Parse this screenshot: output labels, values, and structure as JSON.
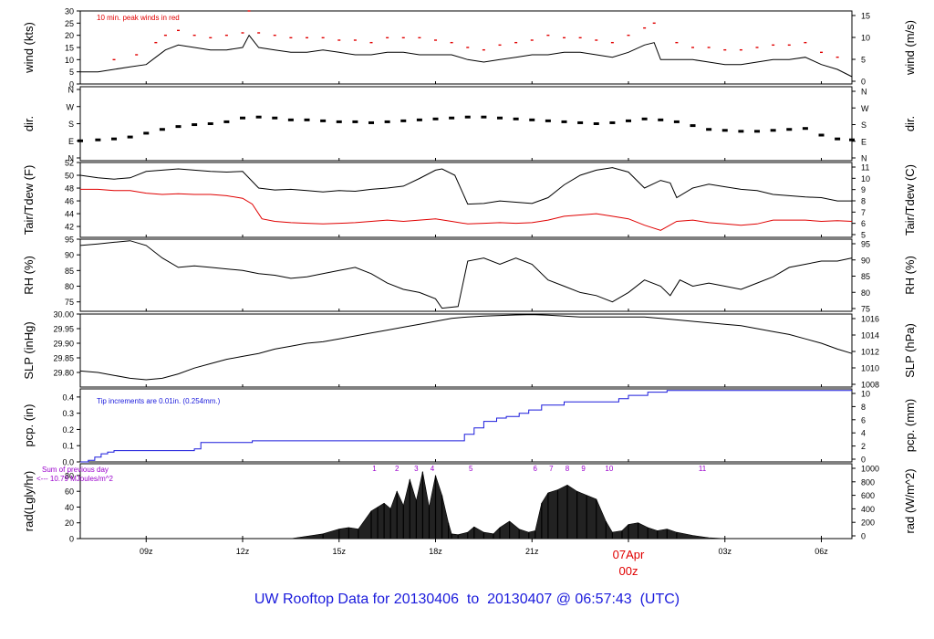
{
  "title": "UW Rooftop Data for 20130406  to  20130407 @ 06:57:43  (UTC)",
  "colors": {
    "line": "#000000",
    "peak": "#e00000",
    "dew": "#e00000",
    "pcp": "#1a1adc",
    "annot": "#9a00cc",
    "title": "#1a1adc",
    "day": "#e00000"
  },
  "x_axis": {
    "range_hours": [
      6.95,
      30.95
    ],
    "tick_labels": [
      "09z",
      "12z",
      "15z",
      "18z",
      "21z",
      "03z",
      "06z"
    ],
    "tick_hours": [
      9,
      12,
      15,
      18,
      21,
      27,
      30
    ],
    "day_label_line1": "07Apr",
    "day_label_line2": "00z",
    "day_label_hour": 24
  },
  "chart_data": [
    {
      "type": "line",
      "id": "wind",
      "ylabel_left": "wind (kts)",
      "ylabel_right": "wind (m/s)",
      "ylim": [
        0,
        30
      ],
      "left_ticks": [
        "0",
        "5",
        "10",
        "15",
        "20",
        "25",
        "30"
      ],
      "right_ticks": [
        "0",
        "5",
        "10",
        "15"
      ],
      "annotation": "10 min. peak winds in red",
      "series": [
        {
          "name": "",
          "x": [
            6.95,
            7.5,
            8,
            8.5,
            9,
            9.3,
            9.6,
            10,
            10.5,
            11,
            11.5,
            12,
            12.2,
            12.5,
            13,
            13.5,
            14,
            14.5,
            15,
            15.5,
            16,
            16.5,
            17,
            17.5,
            18,
            18.5,
            19,
            19.5,
            20,
            20.5,
            21,
            21.5,
            22,
            22.5,
            23,
            23.5,
            24,
            24.5,
            24.8,
            25,
            25.5,
            26,
            26.5,
            27,
            27.5,
            28,
            28.5,
            29,
            29.5,
            30,
            30.5,
            30.95
          ],
          "y": [
            5,
            5,
            6,
            7,
            8,
            11,
            14,
            16,
            15,
            14,
            14,
            15,
            20,
            15,
            14,
            13,
            13,
            14,
            13,
            12,
            12,
            13,
            13,
            12,
            12,
            12,
            10,
            9,
            10,
            11,
            12,
            12,
            13,
            13,
            12,
            11,
            13,
            16,
            17,
            10,
            10,
            10,
            9,
            8,
            8,
            9,
            10,
            10,
            11,
            8,
            6,
            3
          ]
        },
        {
          "name": "",
          "x": [
            8,
            8.7,
            9.3,
            9.6,
            10,
            10.5,
            11,
            11.5,
            12,
            12.2,
            12.5,
            13,
            13.5,
            14,
            14.5,
            15,
            15.5,
            16,
            16.5,
            17,
            17.5,
            18,
            18.5,
            19,
            19.5,
            20,
            20.5,
            21,
            21.5,
            22,
            22.5,
            23,
            23.5,
            24,
            24.5,
            24.8,
            25.5,
            26,
            26.5,
            27,
            27.5,
            28,
            28.5,
            29,
            29.5,
            30,
            30.5
          ],
          "y": [
            10,
            12,
            17,
            20,
            22,
            20,
            19,
            20,
            21,
            30,
            21,
            20,
            19,
            19,
            19,
            18,
            18,
            17,
            19,
            19,
            19,
            18,
            17,
            15,
            14,
            16,
            17,
            18,
            20,
            19,
            19,
            18,
            17,
            20,
            23,
            25,
            17,
            15,
            15,
            14,
            14,
            15,
            16,
            16,
            17,
            13,
            11
          ]
        }
      ]
    },
    {
      "type": "scatter",
      "id": "dir",
      "ylabel_left": "dir.",
      "ylabel_right": "dir.",
      "ylim": [
        0,
        360
      ],
      "left_ticks": [
        "N",
        "E",
        "S",
        "W",
        "N"
      ],
      "right_ticks": [
        "N",
        "E",
        "S",
        "W",
        "N"
      ],
      "series": [
        {
          "name": "",
          "x": [
            6.95,
            7.5,
            8,
            8.5,
            9,
            9.5,
            10,
            10.5,
            11,
            11.5,
            12,
            12.5,
            13,
            13.5,
            14,
            14.5,
            15,
            15.5,
            16,
            16.5,
            17,
            17.5,
            18,
            18.5,
            19,
            19.5,
            20,
            20.5,
            21,
            21.5,
            22,
            22.5,
            23,
            23.5,
            24,
            24.5,
            25,
            25.5,
            26,
            26.5,
            27,
            27.5,
            28,
            28.5,
            29,
            29.5,
            30,
            30.5,
            30.95
          ],
          "y": [
            90,
            95,
            100,
            110,
            130,
            150,
            165,
            175,
            180,
            190,
            210,
            215,
            210,
            200,
            200,
            195,
            190,
            190,
            185,
            190,
            195,
            200,
            205,
            210,
            215,
            215,
            210,
            205,
            200,
            195,
            190,
            185,
            180,
            185,
            195,
            205,
            200,
            190,
            170,
            150,
            145,
            140,
            140,
            145,
            150,
            155,
            120,
            100,
            95
          ]
        }
      ]
    },
    {
      "type": "line",
      "id": "temp",
      "ylabel_left": "Tair/Tdew (F)",
      "ylabel_right": "Tair/Tdew (C)",
      "ylim": [
        40.3,
        52
      ],
      "left_ticks": [
        "42",
        "44",
        "46",
        "48",
        "50",
        "52"
      ],
      "right_ticks": [
        "5",
        "6",
        "7",
        "8",
        "9",
        "10",
        "11"
      ],
      "series": [
        {
          "name": "",
          "x": [
            6.95,
            7.5,
            8,
            8.5,
            9,
            9.5,
            10,
            10.5,
            11,
            11.5,
            12,
            12.5,
            13,
            13.5,
            14,
            14.5,
            15,
            15.5,
            16,
            16.5,
            17,
            17.5,
            18,
            18.2,
            18.6,
            19,
            19.5,
            20,
            20.5,
            21,
            21.5,
            22,
            22.5,
            23,
            23.5,
            24,
            24.5,
            25,
            25.3,
            25.5,
            26,
            26.5,
            27,
            27.5,
            28,
            28.5,
            29,
            29.5,
            30,
            30.5,
            30.95
          ],
          "y": [
            50,
            49.6,
            49.4,
            49.6,
            50.6,
            50.8,
            51,
            50.8,
            50.6,
            50.5,
            50.6,
            48,
            47.7,
            47.8,
            47.6,
            47.4,
            47.6,
            47.5,
            47.8,
            48,
            48.3,
            49.5,
            50.8,
            51,
            50,
            45.5,
            45.6,
            46,
            45.8,
            45.6,
            46.5,
            48.5,
            50,
            50.8,
            51.2,
            50.5,
            48,
            49.2,
            48.8,
            46.5,
            48,
            48.6,
            48.2,
            47.8,
            47.6,
            47,
            46.8,
            46.6,
            46.5,
            46,
            46
          ]
        },
        {
          "name": "",
          "x": [
            6.95,
            7.5,
            8,
            8.5,
            9,
            9.5,
            10,
            10.5,
            11,
            11.5,
            12,
            12.3,
            12.6,
            13,
            13.5,
            14,
            14.5,
            15,
            15.5,
            16,
            16.5,
            17,
            17.5,
            18,
            18.5,
            19,
            19.5,
            20,
            20.5,
            21,
            21.5,
            22,
            22.5,
            23,
            23.5,
            24,
            24.5,
            25,
            25.5,
            26,
            26.5,
            27,
            27.5,
            28,
            28.5,
            29,
            29.5,
            30,
            30.5,
            30.95
          ],
          "y": [
            47.8,
            47.8,
            47.6,
            47.6,
            47.2,
            47,
            47.1,
            47,
            47,
            46.8,
            46.4,
            45.5,
            43.2,
            42.8,
            42.6,
            42.5,
            42.4,
            42.5,
            42.6,
            42.8,
            43,
            42.8,
            43,
            43.2,
            42.8,
            42.4,
            42.5,
            42.6,
            42.5,
            42.6,
            43,
            43.6,
            43.8,
            44,
            43.6,
            43.2,
            42.2,
            41.4,
            42.8,
            43,
            42.6,
            42.4,
            42.2,
            42.4,
            43,
            43,
            43,
            42.8,
            42.9,
            42.8
          ]
        }
      ]
    },
    {
      "type": "line",
      "id": "rh",
      "ylabel_left": "RH (%)",
      "ylabel_right": "RH (%)",
      "ylim": [
        72,
        95
      ],
      "left_ticks": [
        "75",
        "80",
        "85",
        "90",
        "95"
      ],
      "right_ticks": [
        "75",
        "80",
        "85",
        "90",
        "95"
      ],
      "series": [
        {
          "name": "",
          "x": [
            6.95,
            7.5,
            8,
            8.5,
            9,
            9.5,
            10,
            10.5,
            11,
            11.5,
            12,
            12.5,
            13,
            13.5,
            14,
            14.5,
            15,
            15.5,
            16,
            16.5,
            17,
            17.5,
            18,
            18.2,
            18.7,
            19,
            19.5,
            20,
            20.5,
            21,
            21.5,
            22,
            22.5,
            23,
            23.5,
            24,
            24.5,
            25,
            25.3,
            25.6,
            26,
            26.5,
            27,
            27.5,
            28,
            28.5,
            29,
            29.5,
            30,
            30.5,
            30.95
          ],
          "y": [
            93,
            93.5,
            94,
            94.5,
            93,
            89,
            86,
            86.5,
            86,
            85.5,
            85,
            84,
            83.5,
            82.5,
            83,
            84,
            85,
            86,
            84,
            81,
            79,
            78,
            76,
            73,
            73.5,
            88,
            89,
            87,
            89,
            87,
            82,
            80,
            78,
            77,
            75,
            78,
            82,
            80,
            77,
            82,
            80,
            81,
            80,
            79,
            81,
            83,
            86,
            87,
            88,
            88,
            89
          ]
        }
      ]
    },
    {
      "type": "line",
      "id": "slp",
      "ylabel_left": "SLP (inHg)",
      "ylabel_right": "SLP (hPa)",
      "ylim": [
        29.75,
        30
      ],
      "left_ticks": [
        "29.80",
        "29.85",
        "29.90",
        "29.95",
        "30.00"
      ],
      "right_ticks": [
        "1008",
        "1010",
        "1012",
        "1014",
        "1016"
      ],
      "series": [
        {
          "name": "",
          "x": [
            6.95,
            7.5,
            8,
            8.5,
            9,
            9.5,
            10,
            10.5,
            11,
            11.5,
            12,
            12.5,
            13,
            13.5,
            14,
            14.5,
            15,
            15.5,
            16,
            16.5,
            17,
            17.5,
            18,
            18.5,
            19,
            19.5,
            20,
            20.5,
            21,
            21.5,
            22,
            22.5,
            23,
            23.5,
            24,
            24.5,
            25,
            25.5,
            26,
            26.5,
            27,
            27.5,
            28,
            28.5,
            29,
            29.5,
            30,
            30.5,
            30.95
          ],
          "y": [
            29.805,
            29.8,
            29.79,
            29.78,
            29.775,
            29.78,
            29.795,
            29.815,
            29.83,
            29.845,
            29.855,
            29.865,
            29.88,
            29.89,
            29.9,
            29.905,
            29.915,
            29.925,
            29.935,
            29.945,
            29.955,
            29.965,
            29.975,
            29.985,
            29.99,
            29.993,
            29.995,
            29.997,
            29.998,
            29.996,
            29.993,
            29.99,
            29.99,
            29.99,
            29.99,
            29.99,
            29.985,
            29.98,
            29.975,
            29.97,
            29.965,
            29.96,
            29.95,
            29.94,
            29.93,
            29.915,
            29.9,
            29.88,
            29.865
          ]
        }
      ]
    },
    {
      "type": "line",
      "id": "pcp",
      "ylabel_left": "pcp. (in)",
      "ylabel_right": "pcp. (mm)",
      "ylim": [
        0,
        0.45
      ],
      "left_ticks": [
        "0.0",
        "0.1",
        "0.2",
        "0.3",
        "0.4"
      ],
      "right_ticks": [
        "0",
        "2",
        "4",
        "6",
        "8",
        "10"
      ],
      "annotation": "Tip increments are 0.01in. (0.254mm.)",
      "series": [
        {
          "name": "",
          "x": [
            6.95,
            7.2,
            7.4,
            7.6,
            7.8,
            8,
            10.5,
            10.7,
            12,
            12.3,
            18.6,
            18.9,
            19.2,
            19.5,
            19.9,
            20.2,
            20.6,
            20.9,
            21.3,
            22,
            22.7,
            23.3,
            23.7,
            24,
            24.4,
            24.6,
            25.2,
            30.95
          ],
          "y": [
            0,
            0.01,
            0.03,
            0.05,
            0.06,
            0.07,
            0.08,
            0.12,
            0.12,
            0.13,
            0.13,
            0.17,
            0.21,
            0.25,
            0.27,
            0.28,
            0.3,
            0.32,
            0.35,
            0.37,
            0.37,
            0.37,
            0.39,
            0.41,
            0.41,
            0.43,
            0.44,
            0.44
          ]
        }
      ]
    },
    {
      "type": "area",
      "id": "rad",
      "ylabel_left": "rad(Lgly/hr)",
      "ylabel_right": "rad (W/m^2)",
      "ylim": [
        0,
        95
      ],
      "left_ticks": [
        "0",
        "20",
        "40",
        "60",
        "80"
      ],
      "right_ticks": [
        "0",
        "200",
        "400",
        "600",
        "800",
        "1000"
      ],
      "annotation_line1": "Sum of previous day",
      "annotation_line2": "<--- 10.79 MJoules/m^2",
      "hour_labels": [
        "1",
        "2",
        "3",
        "4",
        "5",
        "6",
        "7",
        "8",
        "9",
        "10",
        "11"
      ],
      "hour_label_x": [
        16.1,
        16.8,
        17.4,
        17.9,
        19.1,
        21.1,
        21.6,
        22.1,
        22.6,
        23.4,
        26.3
      ],
      "series": [
        {
          "name": "",
          "x": [
            13.5,
            14,
            14.5,
            15,
            15.3,
            15.6,
            16,
            16.2,
            16.4,
            16.6,
            16.8,
            17,
            17.2,
            17.4,
            17.6,
            17.8,
            18,
            18.2,
            18.4,
            18.5,
            18.7,
            19,
            19.2,
            19.5,
            19.8,
            20,
            20.3,
            20.6,
            20.9,
            21.1,
            21.3,
            21.5,
            21.8,
            22.1,
            22.4,
            22.7,
            23,
            23.3,
            23.5,
            23.8,
            24,
            24.3,
            24.6,
            24.9,
            25.2,
            25.5,
            26,
            26.5,
            27
          ],
          "y": [
            0,
            3,
            6,
            12,
            14,
            12,
            35,
            40,
            45,
            38,
            60,
            42,
            75,
            48,
            85,
            40,
            80,
            55,
            20,
            6,
            5,
            8,
            15,
            8,
            6,
            14,
            22,
            12,
            8,
            10,
            45,
            58,
            62,
            68,
            60,
            55,
            50,
            22,
            8,
            10,
            18,
            20,
            14,
            10,
            12,
            8,
            4,
            1,
            0
          ]
        }
      ]
    }
  ]
}
